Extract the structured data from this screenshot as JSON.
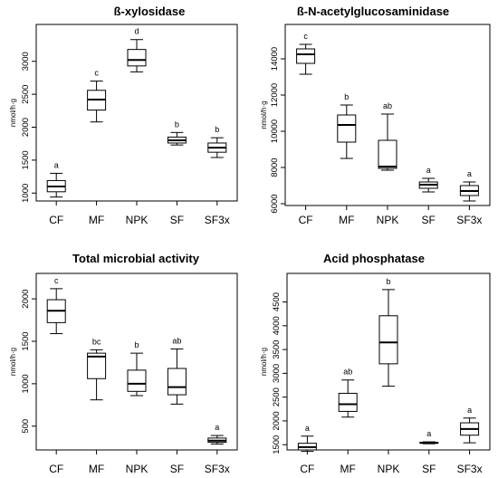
{
  "chart_data": [
    {
      "type": "boxplot",
      "title": "ß-xylosidase",
      "ylabel": "nmol/h·g",
      "categories": [
        "CF",
        "MF",
        "NPK",
        "SF",
        "SF3x"
      ],
      "yticks": [
        1000,
        1500,
        2000,
        2500,
        3000
      ],
      "ylim": [
        880,
        3560
      ],
      "boxes": [
        {
          "min": 940,
          "q1": 1020,
          "median": 1100,
          "q3": 1190,
          "max": 1300,
          "letter": "a"
        },
        {
          "min": 2080,
          "q1": 2260,
          "median": 2420,
          "q3": 2560,
          "max": 2700,
          "letter": "c"
        },
        {
          "min": 2840,
          "q1": 2930,
          "median": 3020,
          "q3": 3180,
          "max": 3330,
          "letter": "d"
        },
        {
          "min": 1730,
          "q1": 1760,
          "median": 1800,
          "q3": 1850,
          "max": 1920,
          "letter": "b"
        },
        {
          "min": 1540,
          "q1": 1620,
          "median": 1690,
          "q3": 1760,
          "max": 1840,
          "letter": "b"
        }
      ]
    },
    {
      "type": "boxplot",
      "title": "ß-N-acetylglucosaminidase",
      "ylabel": "nmol/h·g",
      "categories": [
        "CF",
        "MF",
        "NPK",
        "SF",
        "SF3x"
      ],
      "yticks": [
        6000,
        8000,
        10000,
        12000,
        14000
      ],
      "ylim": [
        5900,
        15900
      ],
      "boxes": [
        {
          "min": 13150,
          "q1": 13750,
          "median": 14250,
          "q3": 14550,
          "max": 14800,
          "letter": "c"
        },
        {
          "min": 8500,
          "q1": 9400,
          "median": 10350,
          "q3": 10900,
          "max": 11450,
          "letter": "b"
        },
        {
          "min": 7850,
          "q1": 7950,
          "median": 8050,
          "q3": 9500,
          "max": 10950,
          "letter": "ab"
        },
        {
          "min": 6650,
          "q1": 6850,
          "median": 7050,
          "q3": 7200,
          "max": 7400,
          "letter": "a"
        },
        {
          "min": 6150,
          "q1": 6450,
          "median": 6700,
          "q3": 7000,
          "max": 7200,
          "letter": "a"
        }
      ]
    },
    {
      "type": "boxplot",
      "title": "Total microbial activity",
      "ylabel": "nmol/h·g",
      "categories": [
        "CF",
        "MF",
        "NPK",
        "SF",
        "SF3x"
      ],
      "yticks": [
        500,
        1000,
        1500,
        2000
      ],
      "ylim": [
        220,
        2300
      ],
      "boxes": [
        {
          "min": 1590,
          "q1": 1720,
          "median": 1860,
          "q3": 1990,
          "max": 2120,
          "letter": "c"
        },
        {
          "min": 810,
          "q1": 1060,
          "median": 1320,
          "q3": 1360,
          "max": 1400,
          "letter": "bc"
        },
        {
          "min": 860,
          "q1": 910,
          "median": 1000,
          "q3": 1160,
          "max": 1360,
          "letter": "b"
        },
        {
          "min": 760,
          "q1": 870,
          "median": 960,
          "q3": 1180,
          "max": 1410,
          "letter": "ab"
        },
        {
          "min": 290,
          "q1": 310,
          "median": 330,
          "q3": 360,
          "max": 390,
          "letter": "a"
        }
      ]
    },
    {
      "type": "boxplot",
      "title": "Acid phosphatase",
      "ylabel": "nmol/h·g",
      "categories": [
        "CF",
        "MF",
        "NPK",
        "SF",
        "SF3x"
      ],
      "yticks": [
        1500,
        2000,
        2500,
        3000,
        3500,
        4000,
        4500
      ],
      "ylim": [
        1390,
        5100
      ],
      "boxes": [
        {
          "min": 1360,
          "q1": 1390,
          "median": 1450,
          "q3": 1530,
          "max": 1680,
          "letter": "a"
        },
        {
          "min": 2080,
          "q1": 2200,
          "median": 2350,
          "q3": 2580,
          "max": 2860,
          "letter": "ab"
        },
        {
          "min": 2730,
          "q1": 3200,
          "median": 3650,
          "q3": 4210,
          "max": 4760,
          "letter": "b"
        },
        {
          "min": 1520,
          "q1": 1530,
          "median": 1540,
          "q3": 1550,
          "max": 1560,
          "letter": "a"
        },
        {
          "min": 1540,
          "q1": 1700,
          "median": 1830,
          "q3": 1960,
          "max": 2060,
          "letter": "a"
        }
      ]
    }
  ]
}
